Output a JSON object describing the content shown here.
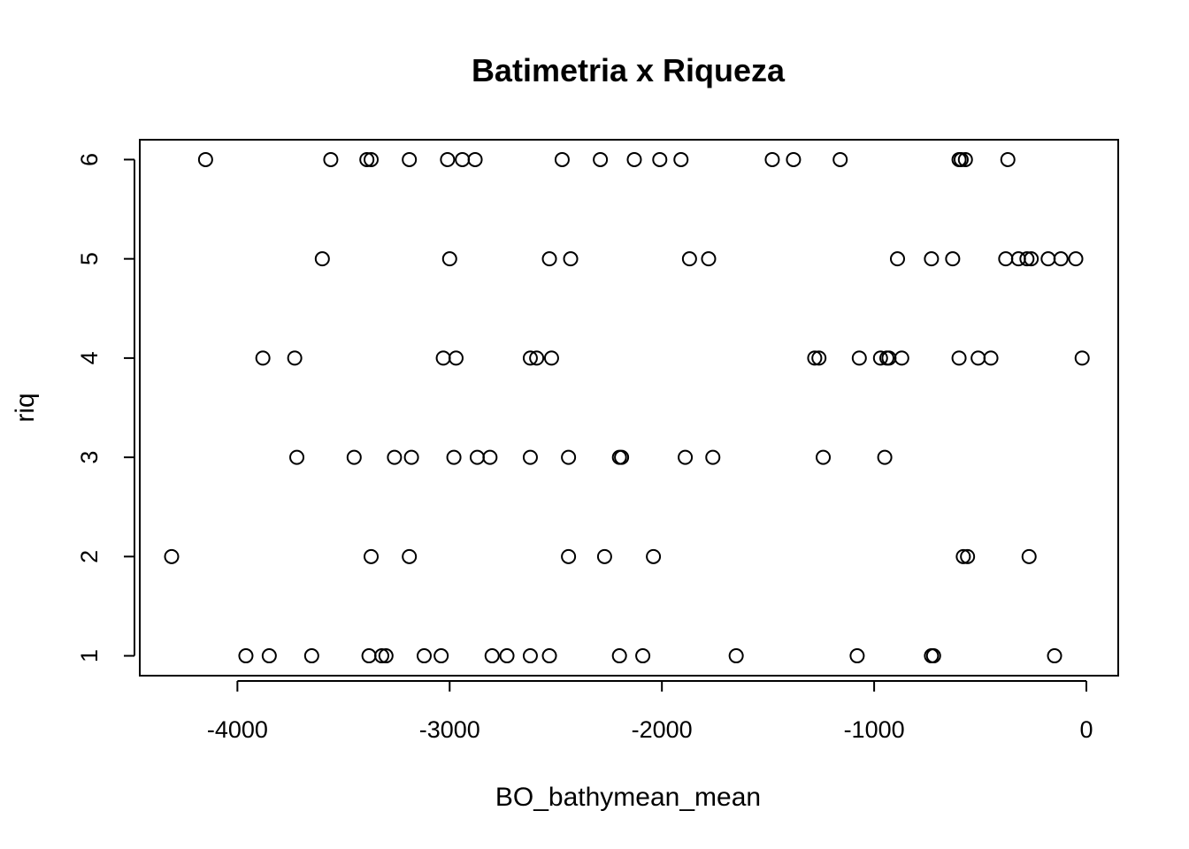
{
  "chart_data": {
    "type": "scatter",
    "title": "Batimetria x Riqueza",
    "xlabel": "BO_bathymean_mean",
    "ylabel": "riq",
    "xlim": [
      -4460,
      150
    ],
    "ylim": [
      0.8,
      6.2
    ],
    "xticks": [
      -4000,
      -3000,
      -2000,
      -1000,
      0
    ],
    "xtick_labels": [
      "-4000",
      "-3000",
      "-2000",
      "-1000",
      "0"
    ],
    "yticks": [
      1,
      2,
      3,
      4,
      5,
      6
    ],
    "ytick_labels": [
      "1",
      "2",
      "3",
      "4",
      "5",
      "6"
    ],
    "grid": false,
    "legend": false,
    "marker": "open-circle",
    "points": [
      {
        "x": -4150,
        "y": 6
      },
      {
        "x": -3560,
        "y": 6
      },
      {
        "x": -3390,
        "y": 6
      },
      {
        "x": -3370,
        "y": 6
      },
      {
        "x": -3190,
        "y": 6
      },
      {
        "x": -3010,
        "y": 6
      },
      {
        "x": -2940,
        "y": 6
      },
      {
        "x": -2880,
        "y": 6
      },
      {
        "x": -2470,
        "y": 6
      },
      {
        "x": -2290,
        "y": 6
      },
      {
        "x": -2130,
        "y": 6
      },
      {
        "x": -2010,
        "y": 6
      },
      {
        "x": -1910,
        "y": 6
      },
      {
        "x": -1480,
        "y": 6
      },
      {
        "x": -1380,
        "y": 6
      },
      {
        "x": -1160,
        "y": 6
      },
      {
        "x": -600,
        "y": 6
      },
      {
        "x": -590,
        "y": 6
      },
      {
        "x": -570,
        "y": 6
      },
      {
        "x": -370,
        "y": 6
      },
      {
        "x": -3600,
        "y": 5
      },
      {
        "x": -3000,
        "y": 5
      },
      {
        "x": -2530,
        "y": 5
      },
      {
        "x": -2430,
        "y": 5
      },
      {
        "x": -1870,
        "y": 5
      },
      {
        "x": -1780,
        "y": 5
      },
      {
        "x": -890,
        "y": 5
      },
      {
        "x": -730,
        "y": 5
      },
      {
        "x": -630,
        "y": 5
      },
      {
        "x": -380,
        "y": 5
      },
      {
        "x": -320,
        "y": 5
      },
      {
        "x": -280,
        "y": 5
      },
      {
        "x": -260,
        "y": 5
      },
      {
        "x": -180,
        "y": 5
      },
      {
        "x": -120,
        "y": 5
      },
      {
        "x": -50,
        "y": 5
      },
      {
        "x": -3880,
        "y": 4
      },
      {
        "x": -3730,
        "y": 4
      },
      {
        "x": -3030,
        "y": 4
      },
      {
        "x": -2970,
        "y": 4
      },
      {
        "x": -2620,
        "y": 4
      },
      {
        "x": -2590,
        "y": 4
      },
      {
        "x": -2520,
        "y": 4
      },
      {
        "x": -1280,
        "y": 4
      },
      {
        "x": -1260,
        "y": 4
      },
      {
        "x": -1070,
        "y": 4
      },
      {
        "x": -970,
        "y": 4
      },
      {
        "x": -940,
        "y": 4
      },
      {
        "x": -930,
        "y": 4
      },
      {
        "x": -870,
        "y": 4
      },
      {
        "x": -600,
        "y": 4
      },
      {
        "x": -510,
        "y": 4
      },
      {
        "x": -450,
        "y": 4
      },
      {
        "x": -20,
        "y": 4
      },
      {
        "x": -3720,
        "y": 3
      },
      {
        "x": -3450,
        "y": 3
      },
      {
        "x": -3260,
        "y": 3
      },
      {
        "x": -3180,
        "y": 3
      },
      {
        "x": -2980,
        "y": 3
      },
      {
        "x": -2870,
        "y": 3
      },
      {
        "x": -2810,
        "y": 3
      },
      {
        "x": -2620,
        "y": 3
      },
      {
        "x": -2440,
        "y": 3
      },
      {
        "x": -2200,
        "y": 3
      },
      {
        "x": -2190,
        "y": 3
      },
      {
        "x": -1890,
        "y": 3
      },
      {
        "x": -1760,
        "y": 3
      },
      {
        "x": -1240,
        "y": 3
      },
      {
        "x": -950,
        "y": 3
      },
      {
        "x": -4310,
        "y": 2
      },
      {
        "x": -3370,
        "y": 2
      },
      {
        "x": -3190,
        "y": 2
      },
      {
        "x": -2440,
        "y": 2
      },
      {
        "x": -2270,
        "y": 2
      },
      {
        "x": -2040,
        "y": 2
      },
      {
        "x": -580,
        "y": 2
      },
      {
        "x": -560,
        "y": 2
      },
      {
        "x": -270,
        "y": 2
      },
      {
        "x": -3960,
        "y": 1
      },
      {
        "x": -3850,
        "y": 1
      },
      {
        "x": -3650,
        "y": 1
      },
      {
        "x": -3380,
        "y": 1
      },
      {
        "x": -3320,
        "y": 1
      },
      {
        "x": -3300,
        "y": 1
      },
      {
        "x": -3120,
        "y": 1
      },
      {
        "x": -3040,
        "y": 1
      },
      {
        "x": -2800,
        "y": 1
      },
      {
        "x": -2730,
        "y": 1
      },
      {
        "x": -2620,
        "y": 1
      },
      {
        "x": -2530,
        "y": 1
      },
      {
        "x": -2200,
        "y": 1
      },
      {
        "x": -2090,
        "y": 1
      },
      {
        "x": -1650,
        "y": 1
      },
      {
        "x": -1080,
        "y": 1
      },
      {
        "x": -730,
        "y": 1
      },
      {
        "x": -720,
        "y": 1
      },
      {
        "x": -150,
        "y": 1
      }
    ]
  }
}
